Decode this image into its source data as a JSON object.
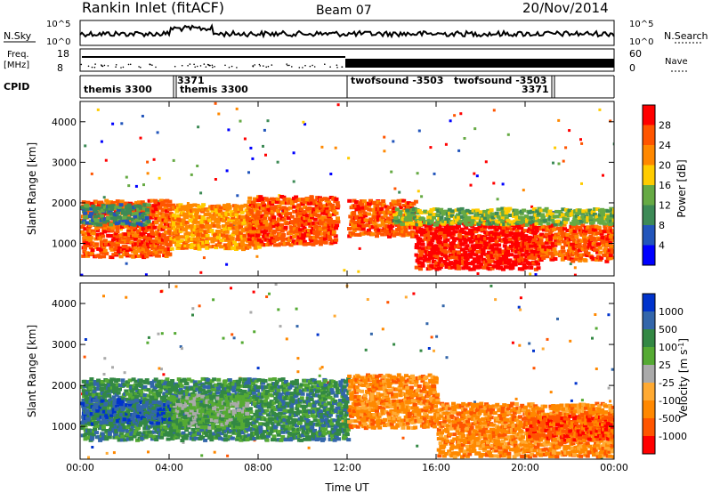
{
  "header": {
    "radar": "Rankin Inlet (fitACF)",
    "beam": "Beam 07",
    "date": "20/Nov/2014"
  },
  "top_panels": {
    "nsky_label": "N.Sky",
    "nsky_ticks": [
      "10^5",
      "10^0"
    ],
    "nsearch_label": "N.Search",
    "freq_label": "Freq.",
    "freq_unit": "[MHz]",
    "freq_ticks": [
      "18",
      "8"
    ],
    "nave_ticks": [
      "60",
      "0"
    ],
    "nave_label": "Nave",
    "cpid_label": "CPID",
    "cpid_segments": [
      {
        "label": "themis 3300",
        "start_hour": 0.0,
        "end_hour": 4.0
      },
      {
        "label": "3371",
        "start_hour": 4.0,
        "end_hour": 4.1
      },
      {
        "label": "themis 3300",
        "start_hour": 4.1,
        "end_hour": 12.0
      },
      {
        "label": "twofsound -3503",
        "start_hour": 12.0,
        "end_hour": 16.0
      },
      {
        "label": "twofsound -3503",
        "start_hour": 16.0,
        "end_hour": 21.0
      },
      {
        "label": "3371",
        "start_hour": 21.0,
        "end_hour": 21.2
      }
    ]
  },
  "colors": {
    "power": [
      "#0000ff",
      "#2255bb",
      "#3d8a56",
      "#66aa44",
      "#ffcc00",
      "#ff8800",
      "#ff5500",
      "#ff0000"
    ],
    "velocity": [
      "#0033cc",
      "#3366aa",
      "#338844",
      "#55aa33",
      "#aaaaaa",
      "#ffaa33",
      "#ff8800",
      "#ff5500",
      "#ff0000"
    ]
  },
  "chart_data": [
    {
      "type": "heatmap",
      "name": "power",
      "xlabel": "",
      "ylabel": "Slant Range [km]",
      "xlim": [
        0,
        24
      ],
      "ylim": [
        200,
        4500
      ],
      "x_ticks": [
        0,
        4,
        8,
        12,
        16,
        20,
        24
      ],
      "y_ticks": [
        1000,
        2000,
        3000,
        4000
      ],
      "colorbar_label": "Power [dB]",
      "colorbar_ticks": [
        "4",
        "8",
        "12",
        "16",
        "20",
        "24",
        "28"
      ],
      "bands": [
        {
          "x_start": 0.0,
          "x_end": 4.0,
          "y_low": 700,
          "y_high": 2100,
          "level": 6
        },
        {
          "x_start": 0.0,
          "x_end": 3.0,
          "y_low": 1500,
          "y_high": 2000,
          "level": 2
        },
        {
          "x_start": 4.0,
          "x_end": 8.0,
          "y_low": 900,
          "y_high": 2000,
          "level": 5
        },
        {
          "x_start": 7.5,
          "x_end": 11.5,
          "y_low": 1000,
          "y_high": 2200,
          "level": 6
        },
        {
          "x_start": 12.0,
          "x_end": 15.0,
          "y_low": 1200,
          "y_high": 2100,
          "level": 6
        },
        {
          "x_start": 15.0,
          "x_end": 20.5,
          "y_low": 400,
          "y_high": 1600,
          "level": 7
        },
        {
          "x_start": 20.5,
          "x_end": 24.0,
          "y_low": 600,
          "y_high": 1500,
          "level": 6
        },
        {
          "x_start": 14.0,
          "x_end": 24.0,
          "y_low": 1500,
          "y_high": 1900,
          "level": 3
        }
      ]
    },
    {
      "type": "heatmap",
      "name": "velocity",
      "xlabel": "Time UT",
      "ylabel": "Slant Range [km]",
      "xlim": [
        0,
        24
      ],
      "ylim": [
        200,
        4500
      ],
      "x_ticks": [
        0,
        4,
        8,
        12,
        16,
        20,
        24
      ],
      "x_tick_labels": [
        "00:00",
        "04:00",
        "08:00",
        "12:00",
        "16:00",
        "20:00",
        "00:00"
      ],
      "y_ticks": [
        1000,
        2000,
        3000,
        4000
      ],
      "colorbar_label": "Velocity [m s^-1]",
      "colorbar_ticks": [
        "1000",
        "500",
        "100",
        "25",
        "-25",
        "-100",
        "-500",
        "-1000"
      ],
      "bands": [
        {
          "x_start": 0.0,
          "x_end": 12.0,
          "y_low": 700,
          "y_high": 2200,
          "level": 2
        },
        {
          "x_start": 0.0,
          "x_end": 4.0,
          "y_low": 1100,
          "y_high": 1700,
          "level": 1
        },
        {
          "x_start": 4.0,
          "x_end": 7.5,
          "y_low": 1000,
          "y_high": 1800,
          "level": 3
        },
        {
          "x_start": 12.0,
          "x_end": 16.0,
          "y_low": 1000,
          "y_high": 2300,
          "level": 6
        },
        {
          "x_start": 16.0,
          "x_end": 24.0,
          "y_low": 300,
          "y_high": 1600,
          "level": 6
        },
        {
          "x_start": 20.0,
          "x_end": 24.0,
          "y_low": 700,
          "y_high": 1300,
          "level": 7
        }
      ]
    }
  ]
}
